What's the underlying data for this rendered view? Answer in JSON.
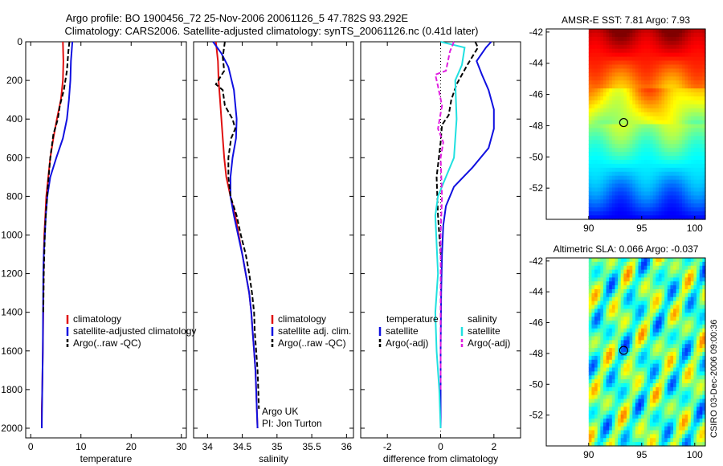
{
  "title_line1": "Argo profile: BO 1900456_72 25-Nov-2006 20061126_5 47.782S 93.292E",
  "title_line2": "Climatology: CARS2006. Satellite-adjusted climatology: synTS_20061126.nc (0.41d later)",
  "side_text": "CSIRO 03-Dec-2006 09:00:36",
  "colors": {
    "red": "#e01010",
    "blue": "#1010e0",
    "black": "#000000",
    "cyan": "#20e0e0",
    "magenta": "#e020e0"
  },
  "chart_data": [
    {
      "id": "temperature",
      "type": "line",
      "xlabel": "temperature",
      "xlim": [
        -1,
        31
      ],
      "xticks": [
        "0",
        "10",
        "20",
        "30"
      ],
      "xtick_values": [
        0,
        10,
        20,
        30
      ],
      "ylim": [
        2050,
        0
      ],
      "yticks": [
        "0",
        "200",
        "400",
        "600",
        "800",
        "1000",
        "1200",
        "1400",
        "1600",
        "1800",
        "2000"
      ],
      "ytick_values": [
        0,
        200,
        400,
        600,
        800,
        1000,
        1200,
        1400,
        1600,
        1800,
        2000
      ],
      "series": [
        {
          "name": "climatology",
          "color": "red",
          "dash": "solid",
          "points": [
            [
              6.4,
              0
            ],
            [
              6.5,
              100
            ],
            [
              6.4,
              200
            ],
            [
              6.0,
              300
            ],
            [
              5.2,
              400
            ],
            [
              4.5,
              500
            ],
            [
              3.9,
              600
            ],
            [
              3.5,
              700
            ],
            [
              3.1,
              800
            ],
            [
              2.9,
              900
            ],
            [
              2.7,
              1000
            ],
            [
              2.6,
              1100
            ],
            [
              2.55,
              1200
            ],
            [
              2.5,
              1400
            ],
            [
              2.4,
              1600
            ],
            [
              2.3,
              1800
            ],
            [
              2.2,
              1900
            ],
            [
              2.2,
              2000
            ]
          ]
        },
        {
          "name": "satellite-adjusted climatology",
          "color": "blue",
          "dash": "solid",
          "points": [
            [
              8.3,
              0
            ],
            [
              8.0,
              100
            ],
            [
              7.9,
              200
            ],
            [
              7.6,
              300
            ],
            [
              7.2,
              400
            ],
            [
              6.4,
              500
            ],
            [
              5.1,
              600
            ],
            [
              3.9,
              700
            ],
            [
              3.3,
              800
            ],
            [
              3.0,
              900
            ],
            [
              2.8,
              1000
            ],
            [
              2.6,
              1100
            ],
            [
              2.5,
              1200
            ],
            [
              2.45,
              1400
            ],
            [
              2.4,
              1600
            ],
            [
              2.3,
              1800
            ],
            [
              2.2,
              2000
            ]
          ]
        },
        {
          "name": "Argo(..raw -QC)",
          "color": "black",
          "dash": "dashed",
          "points": [
            [
              7.7,
              0
            ],
            [
              7.5,
              50
            ],
            [
              7.2,
              150
            ],
            [
              6.6,
              250
            ],
            [
              5.8,
              330
            ],
            [
              5.4,
              400
            ],
            [
              4.5,
              480
            ],
            [
              3.9,
              600
            ],
            [
              3.4,
              750
            ],
            [
              3.0,
              900
            ],
            [
              2.8,
              1000
            ],
            [
              2.6,
              1200
            ],
            [
              2.5,
              1400
            ]
          ]
        }
      ],
      "legend": [
        {
          "label": "climatology",
          "color": "red"
        },
        {
          "label": "satellite-adjusted climatology",
          "color": "blue"
        },
        {
          "label": "Argo(..raw -QC)",
          "color": "black"
        }
      ]
    },
    {
      "id": "salinity",
      "type": "line",
      "xlabel": "salinity",
      "xlim": [
        33.8,
        36.1
      ],
      "xticks": [
        "34",
        "34.5",
        "35",
        "35.5",
        "36"
      ],
      "xtick_values": [
        34,
        34.5,
        35,
        35.5,
        36
      ],
      "ylim": [
        2050,
        0
      ],
      "series": [
        {
          "name": "climatology",
          "color": "red",
          "dash": "solid",
          "points": [
            [
              34.12,
              0
            ],
            [
              34.15,
              100
            ],
            [
              34.16,
              200
            ],
            [
              34.18,
              300
            ],
            [
              34.2,
              400
            ],
            [
              34.22,
              500
            ],
            [
              34.24,
              600
            ],
            [
              34.27,
              700
            ],
            [
              34.33,
              800
            ],
            [
              34.4,
              900
            ],
            [
              34.45,
              1000
            ],
            [
              34.5,
              1100
            ],
            [
              34.55,
              1200
            ],
            [
              34.6,
              1300
            ],
            [
              34.63,
              1400
            ],
            [
              34.65,
              1500
            ],
            [
              34.67,
              1600
            ],
            [
              34.69,
              1700
            ],
            [
              34.7,
              1800
            ],
            [
              34.71,
              1900
            ],
            [
              34.72,
              2000
            ]
          ]
        },
        {
          "name": "satellite adj. clim.",
          "color": "blue",
          "dash": "solid",
          "points": [
            [
              34.08,
              0
            ],
            [
              34.2,
              60
            ],
            [
              34.3,
              130
            ],
            [
              34.38,
              250
            ],
            [
              34.42,
              400
            ],
            [
              34.41,
              500
            ],
            [
              34.36,
              600
            ],
            [
              34.33,
              700
            ],
            [
              34.33,
              800
            ],
            [
              34.38,
              900
            ],
            [
              34.44,
              1000
            ],
            [
              34.5,
              1100
            ],
            [
              34.55,
              1200
            ],
            [
              34.6,
              1300
            ],
            [
              34.63,
              1400
            ],
            [
              34.65,
              1500
            ],
            [
              34.67,
              1600
            ],
            [
              34.69,
              1700
            ],
            [
              34.7,
              1800
            ],
            [
              34.71,
              1900
            ],
            [
              34.72,
              2000
            ]
          ]
        },
        {
          "name": "Argo(..raw -QC)",
          "color": "black",
          "dash": "dashed",
          "points": [
            [
              34.25,
              0
            ],
            [
              34.22,
              80
            ],
            [
              34.24,
              150
            ],
            [
              34.12,
              220
            ],
            [
              34.22,
              250
            ],
            [
              34.25,
              330
            ],
            [
              34.36,
              400
            ],
            [
              34.4,
              450
            ],
            [
              34.34,
              500
            ],
            [
              34.3,
              600
            ],
            [
              34.3,
              700
            ],
            [
              34.33,
              800
            ],
            [
              34.42,
              900
            ],
            [
              34.48,
              1000
            ],
            [
              34.55,
              1100
            ],
            [
              34.6,
              1200
            ],
            [
              34.64,
              1300
            ],
            [
              34.67,
              1400
            ],
            [
              34.68,
              1500
            ],
            [
              34.7,
              1600
            ],
            [
              34.72,
              1700
            ],
            [
              34.73,
              1800
            ],
            [
              34.74,
              1900
            ]
          ]
        }
      ],
      "legend": [
        {
          "label": "climatology",
          "color": "red"
        },
        {
          "label": "satellite adj. clim.",
          "color": "blue"
        },
        {
          "label": "Argo(..raw -QC)",
          "color": "black"
        }
      ],
      "annotation": [
        "Argo UK",
        "PI: Jon Turton"
      ]
    },
    {
      "id": "difference",
      "type": "line",
      "xlabel": "difference from climatology",
      "xlim": [
        -3,
        3
      ],
      "xticks": [
        "-2",
        "0",
        "2"
      ],
      "xtick_values": [
        -2,
        0,
        2
      ],
      "ylim": [
        2050,
        0
      ],
      "series": [
        {
          "name": "temperature satellite",
          "color": "blue",
          "dash": "solid",
          "points": [
            [
              1.9,
              0
            ],
            [
              1.7,
              30
            ],
            [
              1.35,
              100
            ],
            [
              1.55,
              170
            ],
            [
              1.8,
              250
            ],
            [
              2.0,
              350
            ],
            [
              2.0,
              450
            ],
            [
              1.8,
              550
            ],
            [
              1.2,
              650
            ],
            [
              0.5,
              750
            ],
            [
              0.2,
              850
            ],
            [
              0.1,
              950
            ],
            [
              0.05,
              1100
            ],
            [
              0.02,
              1300
            ],
            [
              0.0,
              1600
            ],
            [
              0.0,
              2000
            ]
          ]
        },
        {
          "name": "temperature Argo(-adj)",
          "color": "black",
          "dash": "dashed",
          "points": [
            [
              1.3,
              0
            ],
            [
              1.4,
              30
            ],
            [
              1.0,
              120
            ],
            [
              0.6,
              220
            ],
            [
              0.4,
              300
            ],
            [
              0.3,
              380
            ],
            [
              0.05,
              430
            ],
            [
              0.0,
              520
            ],
            [
              -0.15,
              700
            ],
            [
              -0.1,
              900
            ],
            [
              0.0,
              1100
            ]
          ]
        },
        {
          "name": "salinity satellite",
          "color": "cyan",
          "dash": "solid",
          "points": [
            [
              0.0,
              0
            ],
            [
              0.9,
              30
            ],
            [
              0.8,
              120
            ],
            [
              0.55,
              200
            ],
            [
              0.6,
              400
            ],
            [
              0.5,
              600
            ],
            [
              0.2,
              700
            ],
            [
              -0.1,
              800
            ],
            [
              -0.2,
              900
            ],
            [
              -0.1,
              1200
            ],
            [
              -0.2,
              1400
            ],
            [
              -0.15,
              1600
            ],
            [
              -0.05,
              1800
            ],
            [
              0.0,
              2000
            ]
          ]
        },
        {
          "name": "salinity Argo(-adj)",
          "color": "magenta",
          "dash": "dashed",
          "points": [
            [
              0.5,
              0
            ],
            [
              0.35,
              50
            ],
            [
              0.2,
              150
            ],
            [
              -0.2,
              170
            ],
            [
              -0.1,
              230
            ],
            [
              0.05,
              330
            ],
            [
              -0.1,
              450
            ],
            [
              0.1,
              520
            ],
            [
              0.0,
              600
            ],
            [
              0.05,
              800
            ],
            [
              0.0,
              1000
            ],
            [
              0.0,
              1300
            ],
            [
              0.0,
              1600
            ],
            [
              0.0,
              1800
            ]
          ]
        }
      ],
      "legend_col1_title": "temperature",
      "legend_col2_title": "salinity",
      "legend_col1": [
        {
          "label": "satellite",
          "color": "blue"
        },
        {
          "label": "Argo(-adj)",
          "color": "black"
        }
      ],
      "legend_col2": [
        {
          "label": "satellite",
          "color": "cyan"
        },
        {
          "label": "Argo(-adj)",
          "color": "magenta"
        }
      ]
    },
    {
      "id": "sst-map",
      "type": "heatmap",
      "title": "AMSR-E SST: 7.81 Argo: 7.93",
      "xlim": [
        86,
        101
      ],
      "ylim": [
        -54,
        -41.8
      ],
      "xticks": [
        "90",
        "95",
        "100"
      ],
      "xtick_values": [
        90,
        95,
        100
      ],
      "yticks": [
        "-42",
        "-44",
        "-46",
        "-48",
        "-50",
        "-52"
      ],
      "ytick_values": [
        -42,
        -44,
        -46,
        -48,
        -50,
        -52
      ],
      "data_lon_range": [
        90,
        101
      ],
      "data_lat_range": [
        -54,
        -42
      ],
      "marker": [
        93.3,
        -47.8
      ]
    },
    {
      "id": "sla-map",
      "type": "heatmap",
      "title": "Altimetric SLA: 0.066 Argo: -0.037",
      "xlim": [
        86,
        101
      ],
      "ylim": [
        -54,
        -41.8
      ],
      "xticks": [
        "90",
        "95",
        "100"
      ],
      "xtick_values": [
        90,
        95,
        100
      ],
      "yticks": [
        "-42",
        "-44",
        "-46",
        "-48",
        "-50",
        "-52"
      ],
      "ytick_values": [
        -42,
        -44,
        -46,
        -48,
        -50,
        -52
      ],
      "data_lon_range": [
        90,
        101
      ],
      "data_lat_range": [
        -54,
        -42
      ],
      "marker": [
        93.3,
        -47.8
      ]
    }
  ]
}
